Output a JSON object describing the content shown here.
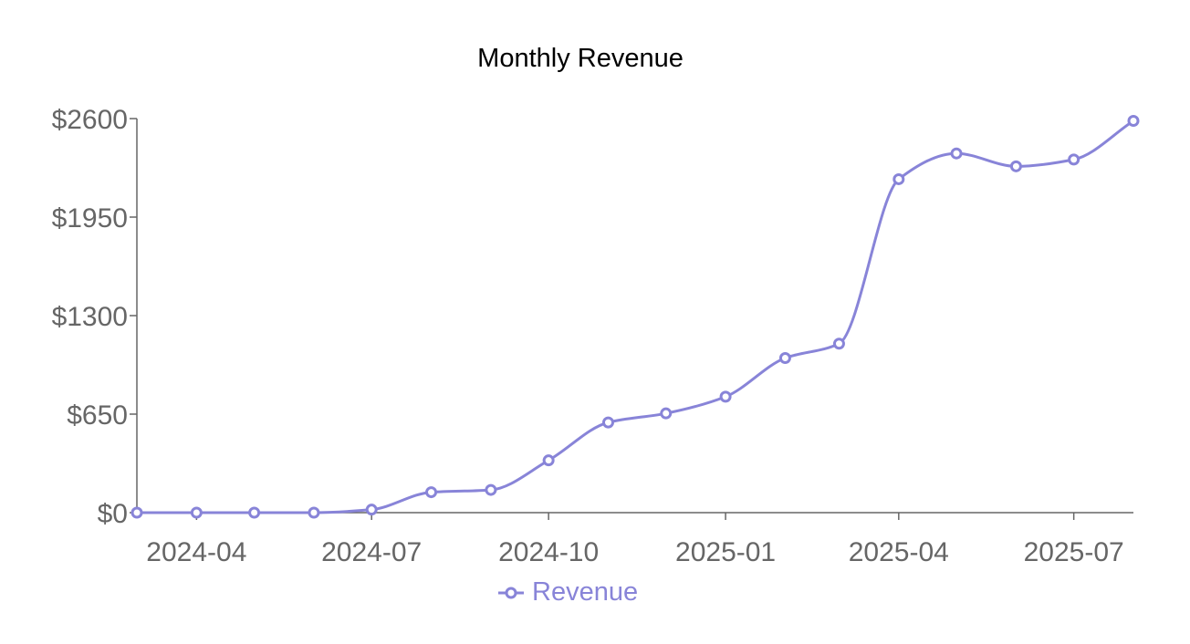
{
  "chart_data": {
    "type": "line",
    "title": "Monthly Revenue",
    "xlabel": "",
    "ylabel": "",
    "x": [
      "2024-03",
      "2024-04",
      "2024-05",
      "2024-06",
      "2024-07",
      "2024-08",
      "2024-09",
      "2024-10",
      "2024-11",
      "2024-12",
      "2025-01",
      "2025-02",
      "2025-03",
      "2025-04",
      "2025-05",
      "2025-06",
      "2025-07",
      "2025-08"
    ],
    "x_range": [
      "2024-03-01",
      "2025-08-01"
    ],
    "x_ticks": [
      "2024-04",
      "2024-07",
      "2024-10",
      "2025-01",
      "2025-04",
      "2025-07"
    ],
    "y_range": [
      0,
      2600
    ],
    "y_ticks": [
      0,
      650,
      1300,
      1950,
      2600
    ],
    "y_tick_labels": [
      "$0",
      "$650",
      "$1300",
      "$1950",
      "$2600"
    ],
    "series": [
      {
        "name": "Revenue",
        "color": "#8884d8",
        "values": [
          0,
          0,
          0,
          0,
          20,
          135,
          150,
          345,
          595,
          655,
          765,
          1020,
          1115,
          2200,
          2370,
          2285,
          2330,
          2585
        ]
      }
    ],
    "curve": "smooth",
    "grid": false,
    "legend": "bottom-center"
  }
}
